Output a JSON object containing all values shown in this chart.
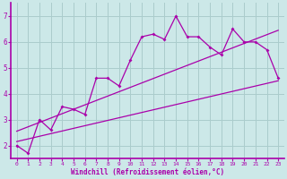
{
  "title": "",
  "xlabel": "Windchill (Refroidissement éolien,°C)",
  "ylabel": "",
  "bg_color": "#cce8e8",
  "grid_color": "#aacccc",
  "line_color": "#aa00aa",
  "spine_color": "#aa00aa",
  "xlim": [
    -0.5,
    23.5
  ],
  "ylim": [
    1.5,
    7.5
  ],
  "yticks": [
    2,
    3,
    4,
    5,
    6,
    7
  ],
  "xticks": [
    0,
    1,
    2,
    3,
    4,
    5,
    6,
    7,
    8,
    9,
    10,
    11,
    12,
    13,
    14,
    15,
    16,
    17,
    18,
    19,
    20,
    21,
    22,
    23
  ],
  "series": [
    [
      0,
      2.0
    ],
    [
      1,
      1.7
    ],
    [
      2,
      3.0
    ],
    [
      3,
      2.6
    ],
    [
      4,
      3.5
    ],
    [
      5,
      3.4
    ],
    [
      6,
      3.2
    ],
    [
      7,
      4.6
    ],
    [
      8,
      4.6
    ],
    [
      9,
      4.3
    ],
    [
      10,
      5.3
    ],
    [
      11,
      6.2
    ],
    [
      12,
      6.3
    ],
    [
      13,
      6.1
    ],
    [
      14,
      7.0
    ],
    [
      15,
      6.2
    ],
    [
      16,
      6.2
    ],
    [
      17,
      5.8
    ],
    [
      18,
      5.5
    ],
    [
      19,
      6.5
    ],
    [
      20,
      6.0
    ],
    [
      21,
      6.0
    ],
    [
      22,
      5.7
    ],
    [
      23,
      4.6
    ]
  ],
  "line1_x": [
    0,
    23
  ],
  "line1_y": [
    2.15,
    4.5
  ],
  "line2_x": [
    0,
    23
  ],
  "line2_y": [
    2.55,
    6.45
  ],
  "xlabel_fontsize": 5.5,
  "tick_fontsize_x": 4.5,
  "tick_fontsize_y": 5.5
}
